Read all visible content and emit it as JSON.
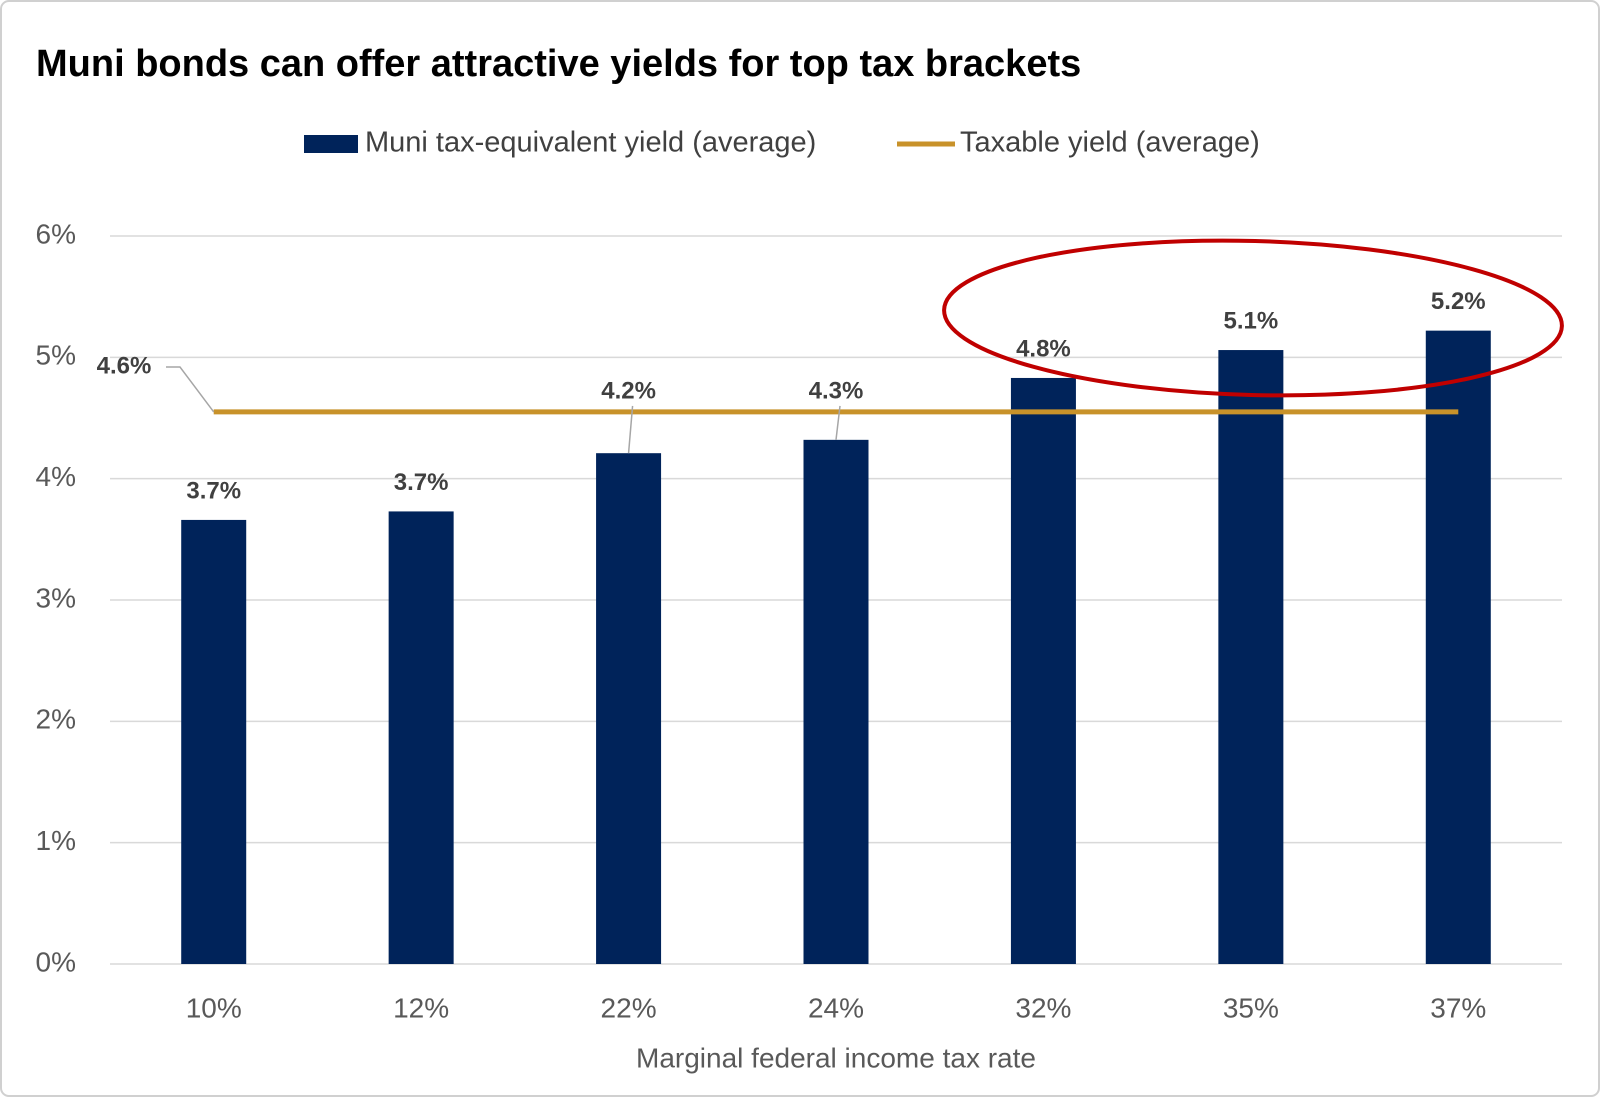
{
  "chart_data": {
    "type": "bar",
    "title": "Muni bonds can offer attractive yields for top tax brackets",
    "x_label": "Marginal federal income tax rate",
    "categories": [
      "10%",
      "12%",
      "22%",
      "24%",
      "32%",
      "35%",
      "37%"
    ],
    "series": [
      {
        "name": "Muni tax-equivalent yield (average)",
        "type": "bar",
        "color": "#00235a",
        "values": [
          3.66,
          3.73,
          4.21,
          4.32,
          4.83,
          5.06,
          5.22
        ],
        "value_labels": [
          "3.7%",
          "3.7%",
          "4.2%",
          "4.3%",
          "4.8%",
          "5.1%",
          "5.2%"
        ]
      },
      {
        "name": "Taxable yield (average)",
        "type": "line",
        "color": "#c8922a",
        "values": [
          4.55,
          4.55,
          4.55,
          4.55,
          4.55,
          4.55,
          4.55
        ],
        "value_labels": [
          "4.6%",
          null,
          null,
          null,
          null,
          null,
          null
        ]
      }
    ],
    "ylim": [
      0,
      6
    ],
    "yticks": [
      {
        "value": 0,
        "label": "0%"
      },
      {
        "value": 1,
        "label": "1%"
      },
      {
        "value": 2,
        "label": "2%"
      },
      {
        "value": 3,
        "label": "3%"
      },
      {
        "value": 4,
        "label": "4%"
      },
      {
        "value": 5,
        "label": "5%"
      },
      {
        "value": 6,
        "label": "6%"
      }
    ],
    "grid": true
  }
}
